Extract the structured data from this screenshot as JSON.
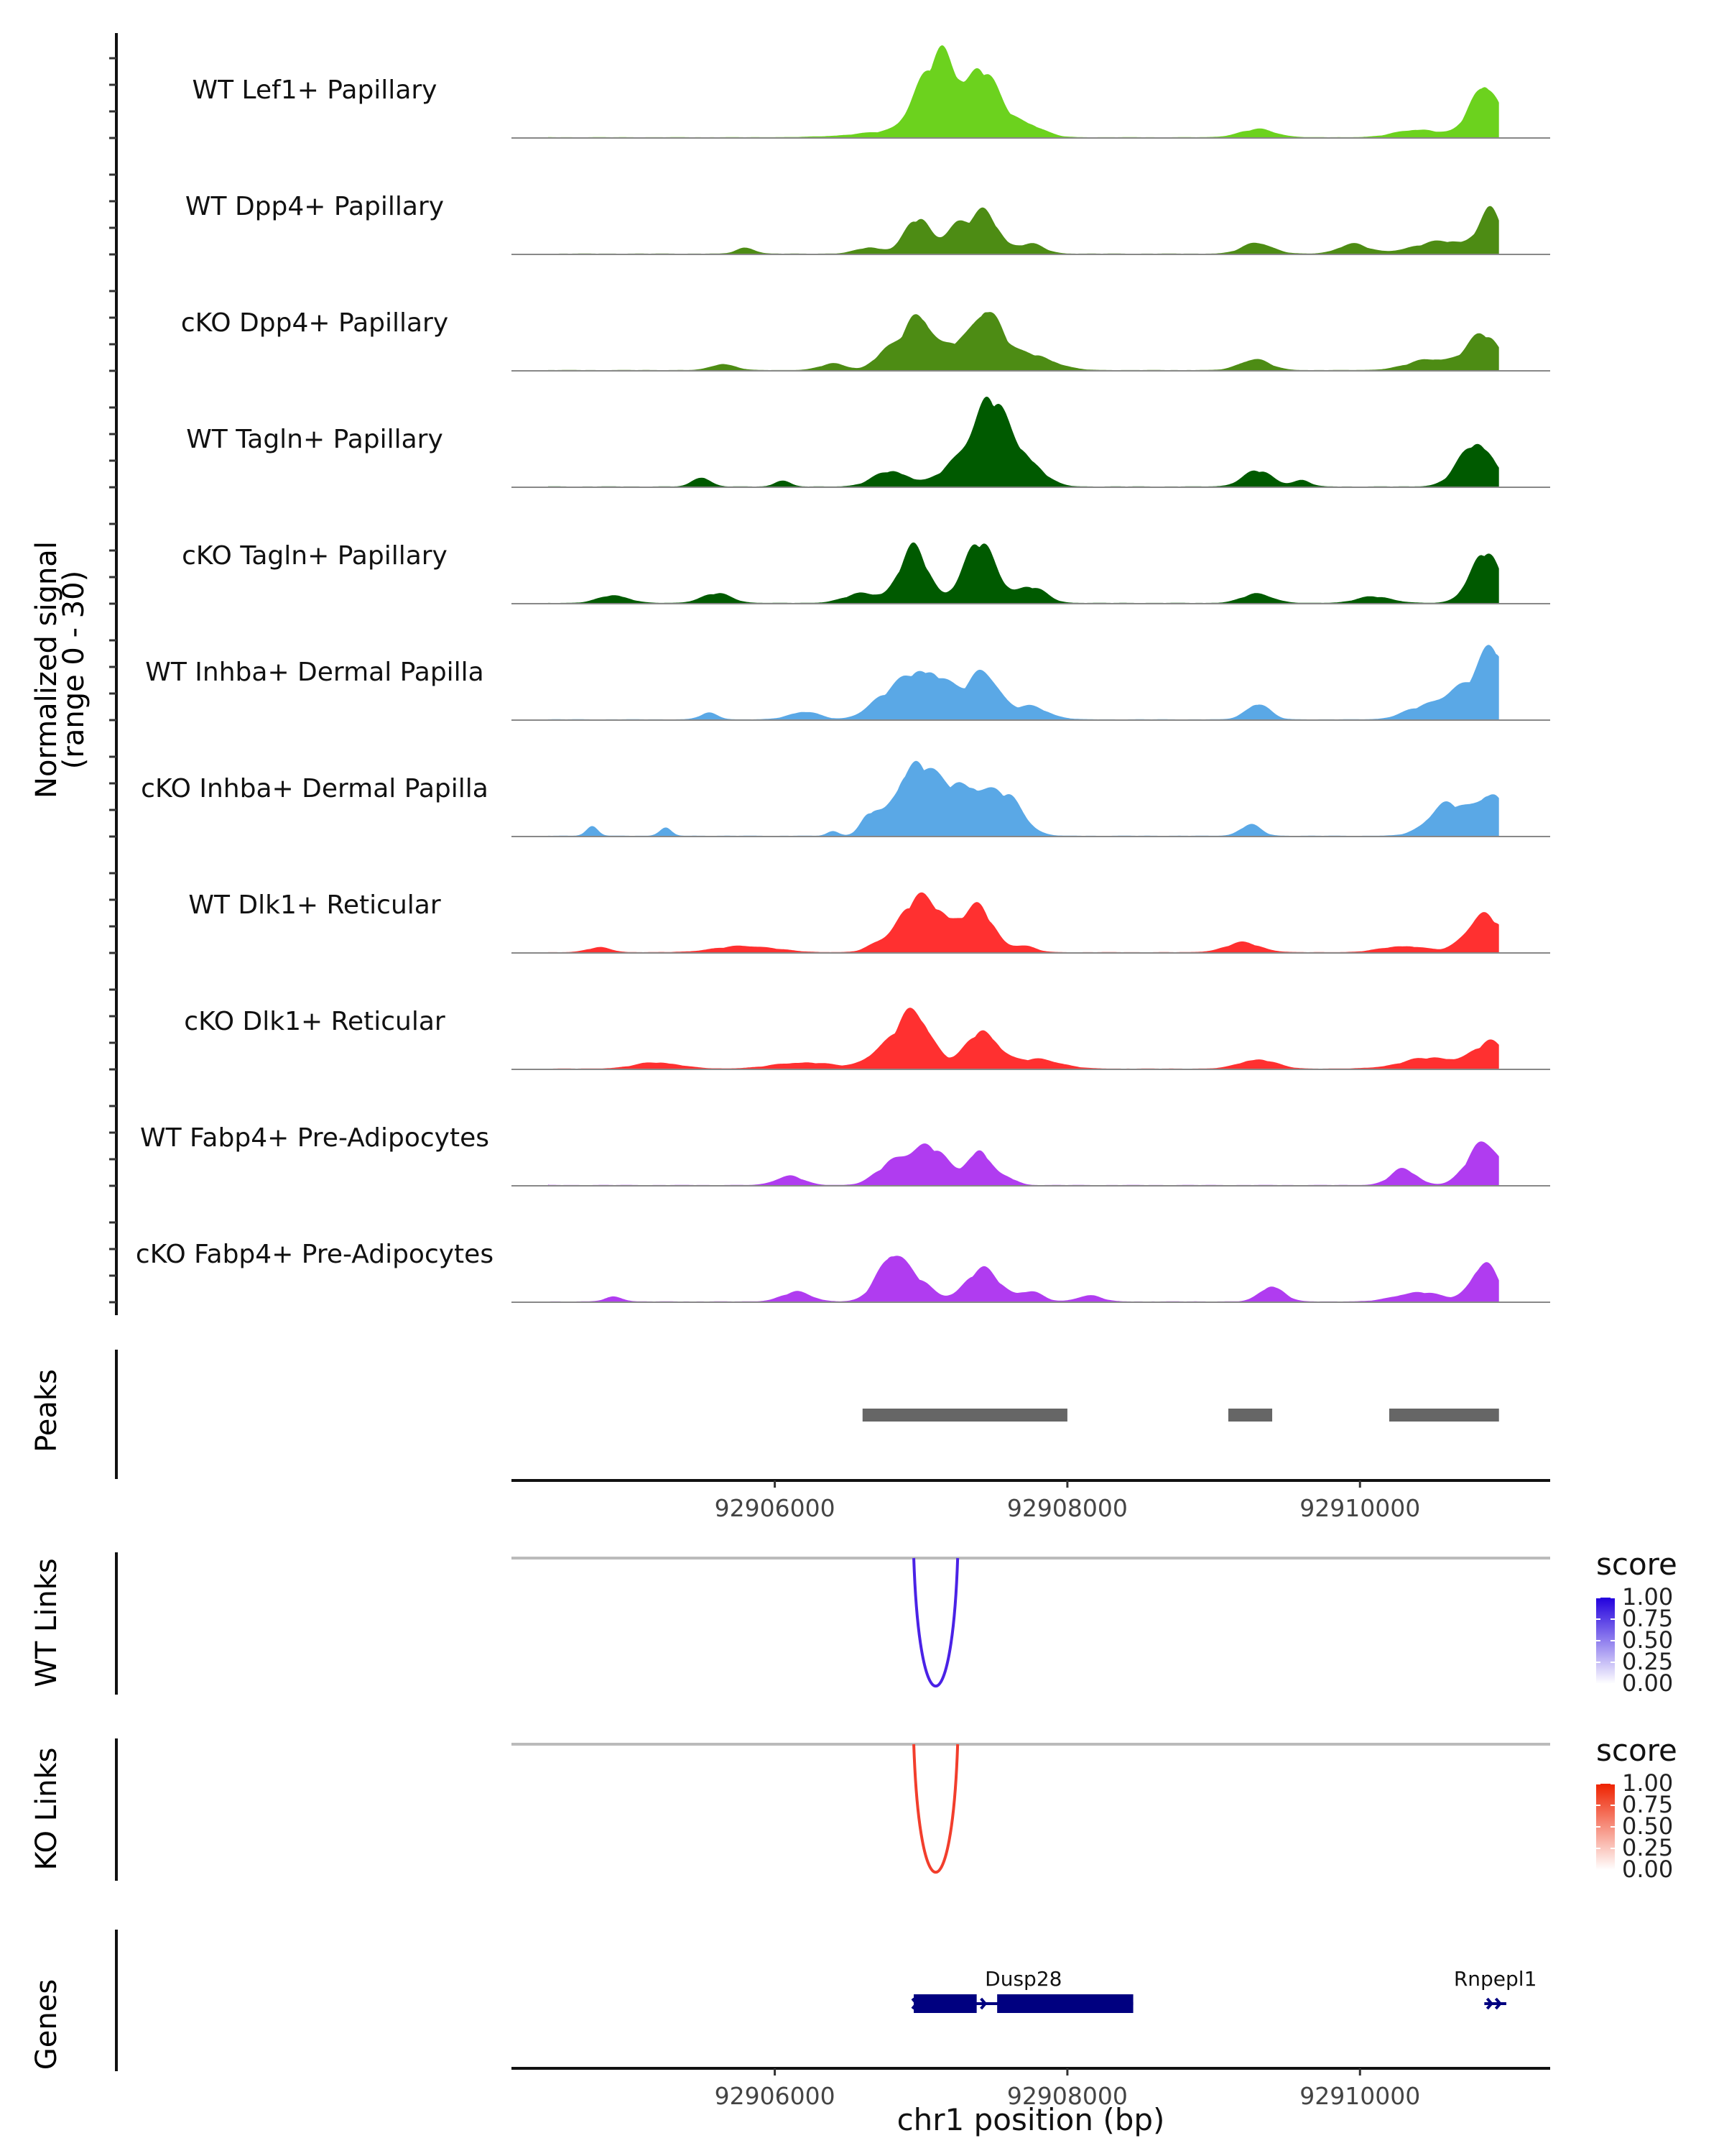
{
  "chart_data": {
    "type": "area",
    "title": "",
    "xlabel": "chr1 position (bp)",
    "x_ticks": [
      92906000,
      92908000,
      92910000
    ],
    "xlim": [
      92904200,
      92911300
    ],
    "coverage": {
      "ylabel_line1": "Normalized signal",
      "ylabel_line2": "(range 0 - 30)",
      "ylim": [
        0,
        30
      ],
      "tracks": [
        {
          "name": "WT Lef1+ Papillary",
          "color": "#6cd21e",
          "peaks": [
            [
              92906900,
              2.0,
              300
            ],
            [
              92907050,
              17.0,
              110
            ],
            [
              92907170,
              12.0,
              70
            ],
            [
              92907400,
              21.0,
              120
            ],
            [
              92907700,
              4.5,
              120
            ],
            [
              92909300,
              2.5,
              120
            ],
            [
              92910400,
              2.5,
              150
            ],
            [
              92910850,
              17.0,
              100
            ]
          ]
        },
        {
          "name": "WT Dpp4+ Papillary",
          "color": "#4d8c14",
          "peaks": [
            [
              92905800,
              2.0,
              60
            ],
            [
              92906650,
              2.0,
              90
            ],
            [
              92906980,
              11.0,
              90
            ],
            [
              92907230,
              7.5,
              70
            ],
            [
              92907430,
              13.0,
              100
            ],
            [
              92907750,
              3.0,
              90
            ],
            [
              92909300,
              3.5,
              100
            ],
            [
              92909950,
              3.0,
              100
            ],
            [
              92910600,
              4.0,
              220
            ],
            [
              92910900,
              12.0,
              80
            ]
          ]
        },
        {
          "name": "cKO Dpp4+ Papillary",
          "color": "#4d8c14",
          "peaks": [
            [
              92905650,
              2.0,
              80
            ],
            [
              92906400,
              2.0,
              90
            ],
            [
              92906750,
              5.0,
              80
            ],
            [
              92906980,
              18.0,
              100
            ],
            [
              92907230,
              6.5,
              80
            ],
            [
              92907450,
              19.0,
              100
            ],
            [
              92907750,
              5.0,
              150
            ],
            [
              92909280,
              3.5,
              100
            ],
            [
              92910500,
              3.5,
              160
            ],
            [
              92910850,
              11.0,
              110
            ]
          ]
        },
        {
          "name": "WT Tagln+ Papillary",
          "color": "#005a00",
          "peaks": [
            [
              92905500,
              3.0,
              60
            ],
            [
              92906050,
              2.0,
              50
            ],
            [
              92906800,
              5.0,
              120
            ],
            [
              92907250,
              7.0,
              120
            ],
            [
              92907470,
              25.0,
              110
            ],
            [
              92907700,
              9.0,
              120
            ],
            [
              92909300,
              5.0,
              100
            ],
            [
              92909600,
              2.0,
              60
            ],
            [
              92910800,
              14.0,
              120
            ]
          ]
        },
        {
          "name": "cKO Tagln+ Papillary",
          "color": "#005a00",
          "peaks": [
            [
              92904900,
              2.5,
              100
            ],
            [
              92905600,
              3.0,
              100
            ],
            [
              92906600,
              3.0,
              120
            ],
            [
              92906950,
              17.0,
              100
            ],
            [
              92907400,
              19.0,
              110
            ],
            [
              92907750,
              5.0,
              100
            ],
            [
              92909300,
              3.0,
              100
            ],
            [
              92910100,
              2.0,
              120
            ],
            [
              92910850,
              16.0,
              100
            ]
          ]
        },
        {
          "name": "WT Inhba+ Dermal Papilla",
          "color": "#5aa8e6",
          "peaks": [
            [
              92905550,
              2.0,
              60
            ],
            [
              92906200,
              2.5,
              100
            ],
            [
              92906700,
              4.0,
              100
            ],
            [
              92906950,
              13.0,
              140
            ],
            [
              92907150,
              8.0,
              120
            ],
            [
              92907430,
              15.0,
              100
            ],
            [
              92907750,
              4.0,
              120
            ],
            [
              92909300,
              5.0,
              80
            ],
            [
              92910400,
              3.0,
              120
            ],
            [
              92910700,
              10.0,
              140
            ],
            [
              92910920,
              20.0,
              90
            ]
          ]
        },
        {
          "name": "cKO Inhba+ Dermal Papilla",
          "color": "#5aa8e6",
          "peaks": [
            [
              92904750,
              3.0,
              40
            ],
            [
              92905250,
              2.5,
              40
            ],
            [
              92906400,
              1.5,
              40
            ],
            [
              92906650,
              6.0,
              60
            ],
            [
              92906950,
              22.0,
              130
            ],
            [
              92907300,
              16.0,
              160
            ],
            [
              92907600,
              10.0,
              110
            ],
            [
              92909250,
              3.5,
              70
            ],
            [
              92910600,
              10.0,
              130
            ],
            [
              92910900,
              13.0,
              100
            ]
          ]
        },
        {
          "name": "WT Dlk1+ Reticular",
          "color": "#ff3030",
          "peaks": [
            [
              92904800,
              1.5,
              80
            ],
            [
              92905800,
              2.0,
              200
            ],
            [
              92906700,
              2.0,
              80
            ],
            [
              92906950,
              14.0,
              120
            ],
            [
              92907150,
              9.0,
              120
            ],
            [
              92907400,
              13.0,
              100
            ],
            [
              92907700,
              2.0,
              80
            ],
            [
              92909200,
              3.0,
              120
            ],
            [
              92910300,
              2.0,
              150
            ],
            [
              92910850,
              12.0,
              120
            ]
          ]
        },
        {
          "name": "cKO Dlk1+ Reticular",
          "color": "#ff3030",
          "peaks": [
            [
              92905200,
              2.0,
              150
            ],
            [
              92906200,
              2.0,
              200
            ],
            [
              92906700,
              4.0,
              100
            ],
            [
              92906950,
              18.0,
              120
            ],
            [
              92907420,
              12.0,
              110
            ],
            [
              92907800,
              3.0,
              150
            ],
            [
              92909300,
              3.0,
              120
            ],
            [
              92910500,
              3.5,
              200
            ],
            [
              92910900,
              8.0,
              110
            ]
          ]
        },
        {
          "name": "WT Fabp4+ Pre-Adipocytes",
          "color": "#b03cf0",
          "peaks": [
            [
              92904400,
              1.5,
              20
            ],
            [
              92906100,
              3.0,
              90
            ],
            [
              92906800,
              6.0,
              110
            ],
            [
              92907050,
              12.0,
              130
            ],
            [
              92907400,
              11.0,
              80
            ],
            [
              92907600,
              2.0,
              60
            ],
            [
              92910300,
              5.0,
              90
            ],
            [
              92910850,
              14.0,
              110
            ]
          ]
        },
        {
          "name": "cKO Fabp4+ Pre-Adipocytes",
          "color": "#b03cf0",
          "peaks": [
            [
              92904900,
              1.5,
              60
            ],
            [
              92906150,
              3.0,
              100
            ],
            [
              92906800,
              15.0,
              100
            ],
            [
              92907000,
              5.0,
              90
            ],
            [
              92907420,
              10.0,
              120
            ],
            [
              92907750,
              3.0,
              80
            ],
            [
              92908150,
              2.0,
              80
            ],
            [
              92909400,
              5.0,
              80
            ],
            [
              92910400,
              3.0,
              150
            ],
            [
              92910850,
              12.0,
              90
            ]
          ]
        }
      ]
    },
    "peaks_track": {
      "label": "Peaks",
      "regions": [
        [
          92906600,
          92908000
        ],
        [
          92909100,
          92909400
        ],
        [
          92910200,
          92910950
        ]
      ],
      "color": "#666666"
    },
    "links": [
      {
        "label": "WT Links",
        "color": "#4a22e6",
        "from": 92906950,
        "to": 92907250,
        "score": 0.85,
        "legend_title": "score",
        "legend_ticks": [
          "1.00",
          "0.75",
          "0.50",
          "0.25",
          "0.00"
        ],
        "legend_color": "#2200dd"
      },
      {
        "label": "KO Links",
        "color": "#f23e2c",
        "from": 92906950,
        "to": 92907250,
        "score": 0.85,
        "legend_title": "score",
        "legend_ticks": [
          "1.00",
          "0.75",
          "0.50",
          "0.25",
          "0.00"
        ],
        "legend_color": "#ee2200"
      }
    ],
    "genes": {
      "label": "Genes",
      "color": "#000080",
      "items": [
        {
          "name": "Dusp28",
          "start": 92906950,
          "end": 92908450,
          "exons": [
            [
              92906950,
              92907380
            ],
            [
              92907520,
              92908450
            ]
          ],
          "strand": "+"
        },
        {
          "name": "Rnpepl1",
          "start": 92910850,
          "end": 92911000,
          "exons": [],
          "strand": "+"
        }
      ]
    }
  }
}
